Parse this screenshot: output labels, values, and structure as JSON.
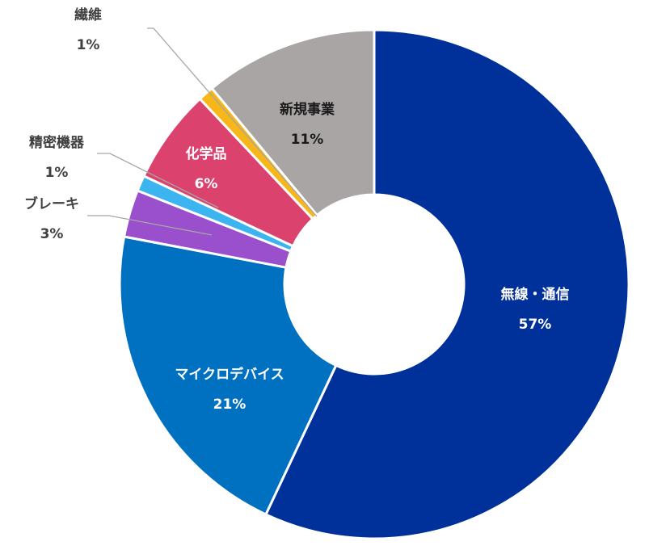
{
  "chart_data": {
    "type": "pie",
    "variant": "donut",
    "start": "top",
    "direction": "clockwise",
    "legend": "none",
    "slices": [
      {
        "label": "無線・通信",
        "value": 57,
        "value_label": "57%",
        "color": "#00309A"
      },
      {
        "label": "マイクロデバイス",
        "value": 21,
        "value_label": "21%",
        "color": "#0071C0"
      },
      {
        "label": "ブレーキ",
        "value": 3,
        "value_label": "3%",
        "color": "#9A4FCD"
      },
      {
        "label": "精密機器",
        "value": 1,
        "value_label": "1%",
        "color": "#3CB4F0"
      },
      {
        "label": "化学品",
        "value": 6,
        "value_label": "6%",
        "color": "#DB426E"
      },
      {
        "label": "繊維",
        "value": 1,
        "value_label": "1%",
        "color": "#F7B719"
      },
      {
        "label": "新規事業",
        "value": 11,
        "value_label": "11%",
        "color": "#A9A5A5"
      }
    ]
  }
}
